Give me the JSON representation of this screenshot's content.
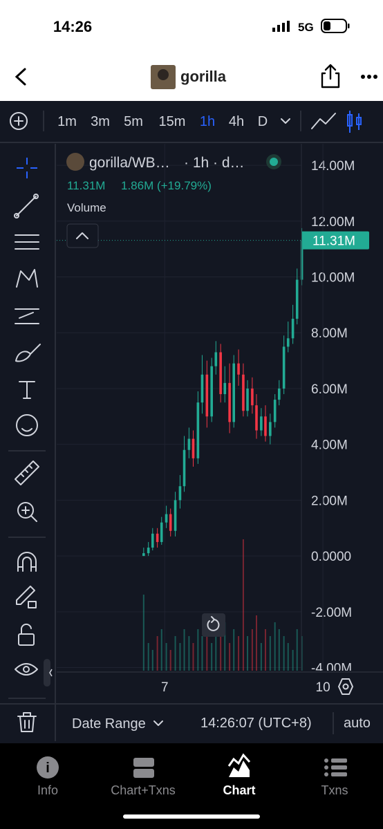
{
  "status": {
    "time": "14:26",
    "network": "5G"
  },
  "header": {
    "title": "gorilla"
  },
  "toolbar": {
    "intervals": [
      "1m",
      "3m",
      "5m",
      "15m",
      "1h",
      "4h",
      "D"
    ],
    "active": 4
  },
  "chart_data": {
    "type": "candlestick",
    "legend_title": "gorilla/WB…",
    "legend_interval": "· 1h · d…",
    "legend_values": [
      "11.31M",
      "1.86M (+19.79%)"
    ],
    "volume_label": "Volume",
    "up_color": "#22ab94",
    "down_color": "#f23645",
    "x": [
      6.6,
      6.69,
      6.77,
      6.86,
      6.94,
      7.03,
      7.11,
      7.2,
      7.29,
      7.37,
      7.46,
      7.54,
      7.63,
      7.71,
      7.8,
      7.89,
      7.97,
      8.06,
      8.14,
      8.23,
      8.31,
      8.4,
      8.49,
      8.57,
      8.66,
      8.74,
      8.83,
      8.91,
      9.0,
      9.09,
      9.17,
      9.26,
      9.34,
      9.43,
      9.51,
      9.6
    ],
    "open": [
      0.0,
      0.1,
      0.3,
      0.8,
      0.5,
      1.2,
      1.5,
      0.9,
      2.0,
      2.5,
      3.8,
      4.2,
      3.5,
      5.5,
      6.5,
      5.0,
      6.8,
      7.3,
      5.8,
      6.2,
      4.8,
      6.9,
      6.5,
      5.2,
      6.0,
      5.4,
      4.5,
      5.0,
      4.3,
      4.8,
      5.6,
      6.0,
      7.5,
      7.8,
      8.5,
      9.9
    ],
    "high": [
      0.3,
      0.5,
      1.0,
      1.0,
      1.4,
      1.8,
      1.7,
      2.3,
      2.9,
      4.3,
      4.6,
      4.5,
      5.9,
      7.2,
      7.0,
      7.1,
      7.7,
      7.6,
      6.8,
      6.9,
      7.2,
      7.4,
      6.9,
      6.3,
      6.4,
      5.8,
      5.3,
      5.4,
      5.1,
      5.8,
      6.3,
      7.9,
      8.4,
      9.0,
      10.3,
      11.75
    ],
    "low": [
      0.0,
      0.0,
      0.2,
      0.3,
      0.4,
      1.0,
      0.7,
      0.7,
      1.7,
      2.3,
      3.5,
      3.2,
      3.3,
      5.1,
      4.6,
      4.8,
      6.5,
      5.5,
      5.5,
      4.4,
      4.6,
      6.1,
      5.0,
      5.0,
      5.1,
      4.2,
      4.3,
      4.1,
      4.0,
      4.6,
      5.4,
      5.8,
      7.3,
      7.6,
      8.3,
      9.7
    ],
    "close": [
      0.1,
      0.3,
      0.8,
      0.5,
      1.2,
      1.5,
      0.9,
      2.0,
      2.5,
      3.8,
      4.2,
      3.5,
      5.5,
      6.5,
      5.0,
      6.8,
      7.3,
      5.8,
      6.2,
      4.8,
      6.9,
      6.5,
      5.2,
      6.0,
      5.4,
      4.5,
      5.0,
      4.3,
      4.8,
      5.6,
      6.0,
      7.5,
      7.8,
      8.5,
      9.9,
      11.31
    ],
    "volume": [
      55,
      20,
      15,
      25,
      30,
      20,
      15,
      25,
      20,
      30,
      25,
      20,
      30,
      25,
      40,
      20,
      30,
      25,
      35,
      20,
      30,
      25,
      95,
      25,
      30,
      40,
      20,
      30,
      25,
      35,
      30,
      25,
      20,
      15,
      30,
      25
    ],
    "last_price": {
      "value": 11.31,
      "label": "11.31M"
    },
    "xlim": [
      4.95,
      11.14
    ],
    "xticks": [
      7,
      10
    ],
    "ylim": [
      -4.11,
      14.77
    ],
    "yticks": [
      {
        "value": 14,
        "label": "14.00M"
      },
      {
        "value": 12,
        "label": "12.00M"
      },
      {
        "value": 10,
        "label": "10.00M"
      },
      {
        "value": 8,
        "label": "8.00M"
      },
      {
        "value": 6,
        "label": "6.00M"
      },
      {
        "value": 4,
        "label": "4.00M"
      },
      {
        "value": 2,
        "label": "2.00M"
      },
      {
        "value": 0,
        "label": "0.0000"
      },
      {
        "value": -2,
        "label": "-2.00M"
      },
      {
        "value": -4,
        "label": "-4.00M"
      }
    ],
    "grid": true
  },
  "footer": {
    "date_range": "Date Range",
    "timestamp": "14:26:07 (UTC+8)",
    "scale": "auto"
  },
  "tabs": [
    "Info",
    "Chart+Txns",
    "Chart",
    "Txns"
  ]
}
